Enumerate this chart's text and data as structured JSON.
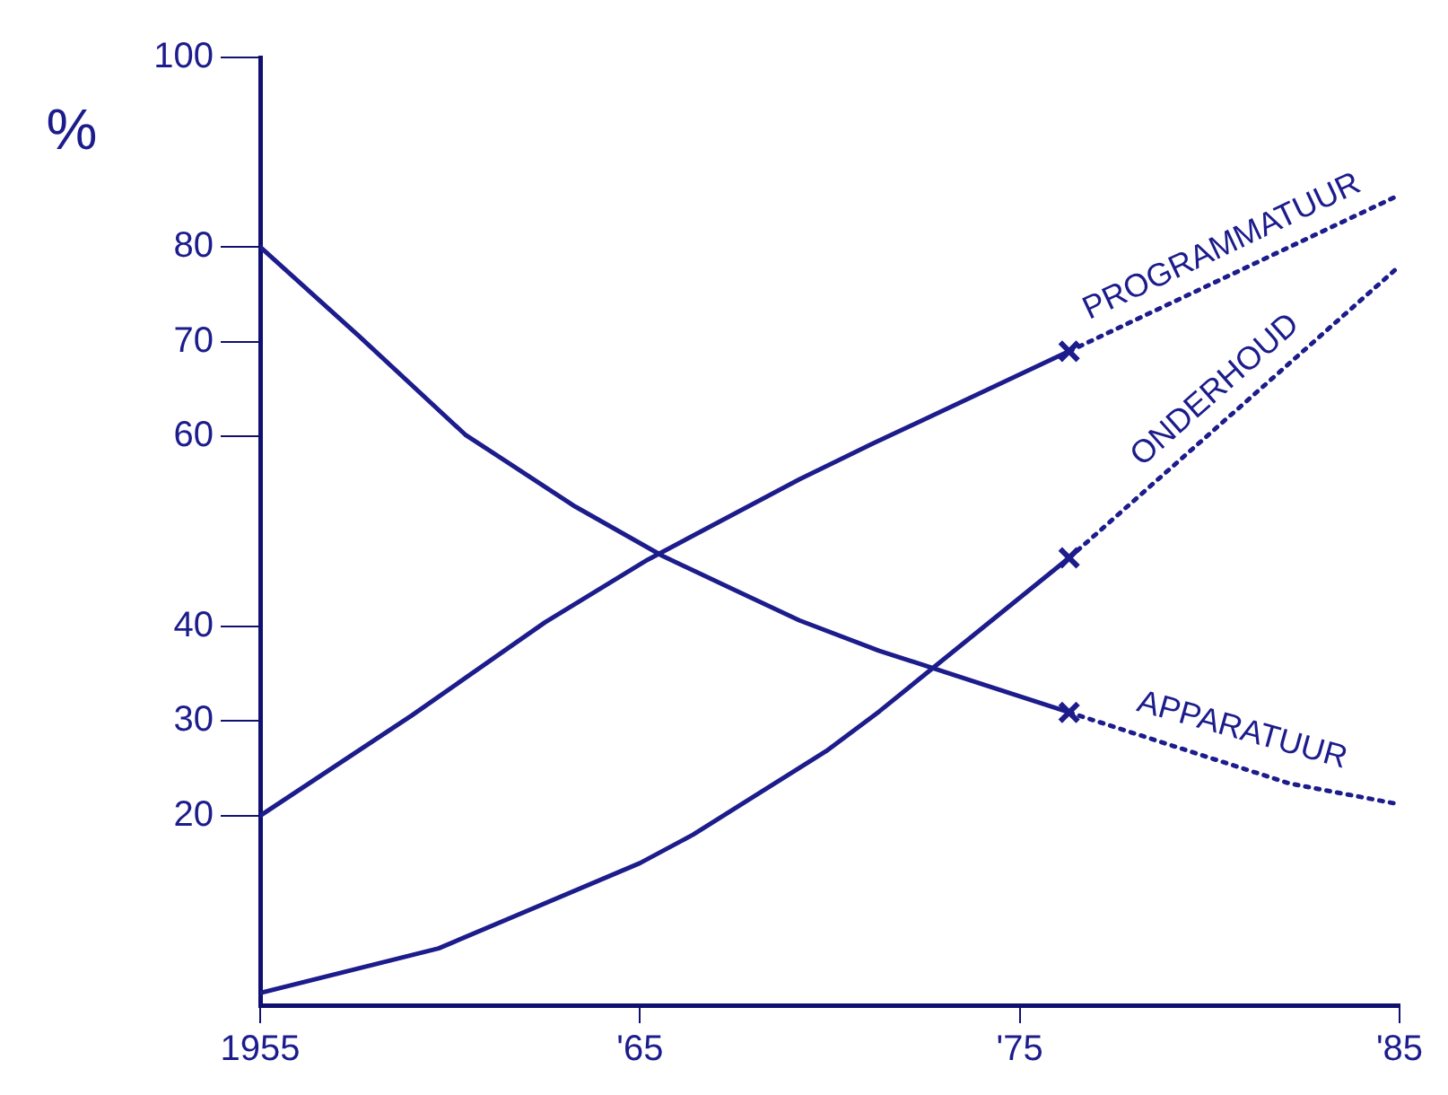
{
  "chart_data": {
    "type": "line",
    "ylabel": "%",
    "xlim": [
      1955,
      1985
    ],
    "ylim": [
      0,
      100
    ],
    "xticks": [
      {
        "value": 1955,
        "label": "1955"
      },
      {
        "value": 1965,
        "label": "'65"
      },
      {
        "value": 1975,
        "label": "'75"
      },
      {
        "value": 1985,
        "label": "'85"
      }
    ],
    "yticks": [
      20,
      30,
      40,
      60,
      70,
      80,
      100
    ],
    "grid": false,
    "legend": false,
    "marker": "none",
    "series": [
      {
        "name": "PROGRAMMATUUR",
        "color": "#1c1c8c",
        "line_style": "solid",
        "x": [
          1955,
          1959,
          1962.5,
          1965.2,
          1969.2,
          1971.1,
          1976.3
        ],
        "values": [
          20,
          30.6,
          40.4,
          47,
          55.5,
          59.2,
          69
        ]
      },
      {
        "name": "ONDERHOUD",
        "color": "#1c1c8c",
        "line_style": "solid",
        "x": [
          1955,
          1959.7,
          1965,
          1966.4,
          1969.9,
          1971.3,
          1976.3
        ],
        "values": [
          1.3,
          6,
          15,
          18,
          26.8,
          31,
          47.2
        ]
      },
      {
        "name": "APPARATUUR",
        "color": "#1c1c8c",
        "line_style": "solid",
        "x": [
          1955,
          1957.6,
          1960.4,
          1963.3,
          1965.6,
          1967.5,
          1969.2,
          1971.3,
          1976.3
        ],
        "values": [
          80,
          70.6,
          60.2,
          52.6,
          47.4,
          43.8,
          40.6,
          37.4,
          30.9
        ]
      },
      {
        "color": "#1c1c8c",
        "line_style": "dotted",
        "x": [
          1976.3,
          1985
        ],
        "values": [
          69,
          85.5
        ]
      },
      {
        "color": "#1c1c8c",
        "line_style": "dotted",
        "x": [
          1976.3,
          1985
        ],
        "values": [
          47.2,
          78
        ]
      },
      {
        "color": "#1c1c8c",
        "line_style": "dotted",
        "x": [
          1976.3,
          1982.1,
          1985
        ],
        "values": [
          30.9,
          23.4,
          21.2
        ]
      },
      {
        "type": "scatter",
        "marker": "cross",
        "color": "#1c1c8c",
        "x": [
          1976.3,
          1976.3,
          1976.3
        ],
        "values": [
          69,
          47.2,
          30.9
        ]
      }
    ]
  }
}
